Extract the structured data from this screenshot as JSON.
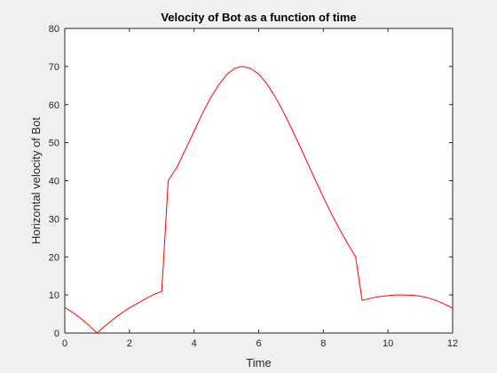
{
  "chart_data": {
    "type": "line",
    "title": "Velocity of Bot as a function of time",
    "xlabel": "Time",
    "ylabel": "Horizontal velocity of Bot",
    "xlim": [
      0,
      12
    ],
    "ylim": [
      0,
      80
    ],
    "xticks": [
      "0",
      "2",
      "4",
      "6",
      "8",
      "10",
      "12"
    ],
    "yticks": [
      "0",
      "10",
      "20",
      "30",
      "40",
      "50",
      "60",
      "70",
      "80"
    ],
    "grid": false,
    "legend": "none",
    "series": [
      {
        "color": "#ff0000",
        "x": [
          0,
          0.25,
          0.5,
          0.75,
          1.0,
          1.25,
          1.5,
          1.75,
          2.0,
          2.25,
          2.5,
          2.75,
          3.0,
          3.2,
          3.5,
          3.75,
          4.0,
          4.25,
          4.5,
          4.75,
          5.0,
          5.25,
          5.5,
          5.75,
          6.0,
          6.25,
          6.5,
          6.75,
          7.0,
          7.25,
          7.5,
          7.75,
          8.0,
          8.25,
          8.5,
          8.75,
          9.0,
          9.2,
          9.5,
          9.75,
          10.0,
          10.25,
          10.5,
          10.75,
          11.0,
          11.25,
          11.5,
          11.75,
          12.0
        ],
        "y": [
          6.7,
          5.4,
          3.8,
          2.0,
          0.0,
          1.9,
          3.6,
          5.2,
          6.6,
          7.8,
          9.0,
          10.1,
          10.9,
          40.0,
          44.0,
          48.5,
          53.0,
          57.5,
          61.6,
          65.0,
          67.8,
          69.5,
          70.0,
          69.5,
          68.0,
          65.5,
          62.2,
          58.3,
          54.0,
          49.5,
          44.9,
          40.2,
          35.7,
          31.3,
          27.3,
          23.5,
          20.0,
          8.6,
          9.2,
          9.6,
          9.8,
          10.0,
          10.0,
          9.9,
          9.7,
          9.2,
          8.5,
          7.6,
          6.5
        ]
      }
    ]
  }
}
